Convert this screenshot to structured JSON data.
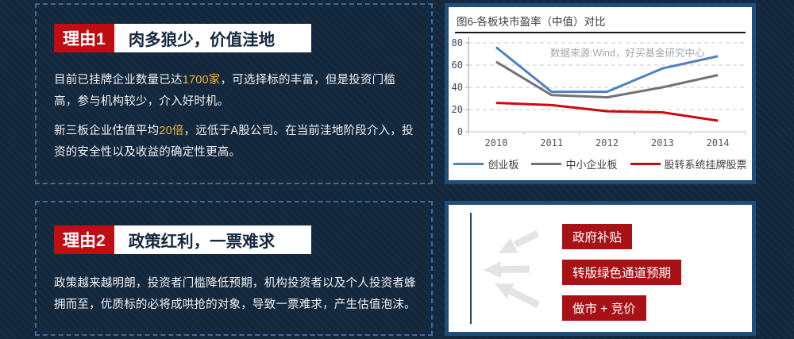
{
  "slide": {
    "bg_color": "#13273d",
    "panel_border_color": "#1f4e78",
    "dashed_border_color": "#3f6b99",
    "accent_red": "#c00d11",
    "tag_red": "#a81216",
    "highlight_gold": "#edb63e"
  },
  "section1": {
    "badge": "理由1",
    "title": "肉多狼少，价值洼地",
    "para1_pre": "目前已挂牌企业数量已达",
    "para1_highlight": "1700家",
    "para1_post": "，可选择标的丰富，但是投资门槛高，参与机构较少，介入好时机。",
    "para2_pre": "新三板企业估值平均",
    "para2_highlight": "20倍",
    "para2_post": "，远低于A股公司。在当前洼地阶段介入，投资的安全性以及收益的确定性更高。"
  },
  "section2": {
    "badge": "理由2",
    "title": "政策红利，一票难求",
    "para": "政策越来越明朗，投资者门槛降低预期，机构投资者以及个人投资者蜂拥而至，优质标的必将成哄抢的对象，导致一票难求，产生估值泡沫。",
    "tags": [
      "政府补贴",
      "转版绿色通道预期",
      "做市 + 竞价"
    ]
  },
  "chart_data": {
    "type": "line",
    "title": "图6-各板块市盈率（中值）对比",
    "source_note": "数据来源:Wind，好买基金研究中心",
    "categories": [
      "2010",
      "2011",
      "2012",
      "2013",
      "2014"
    ],
    "series": [
      {
        "name": "创业板",
        "color": "#4f81bd",
        "values": [
          76,
          36,
          36,
          57,
          68
        ]
      },
      {
        "name": "中小企业板",
        "color": "#737373",
        "values": [
          63,
          33,
          31,
          40,
          51
        ]
      },
      {
        "name": "股转系统挂牌股票",
        "color": "#cc0a10",
        "values": [
          26,
          24,
          18.5,
          17.5,
          10
        ]
      }
    ],
    "ylim": [
      0,
      80
    ],
    "yticks": [
      0,
      20,
      40,
      60,
      80
    ],
    "grid": true,
    "legend_position": "bottom"
  }
}
